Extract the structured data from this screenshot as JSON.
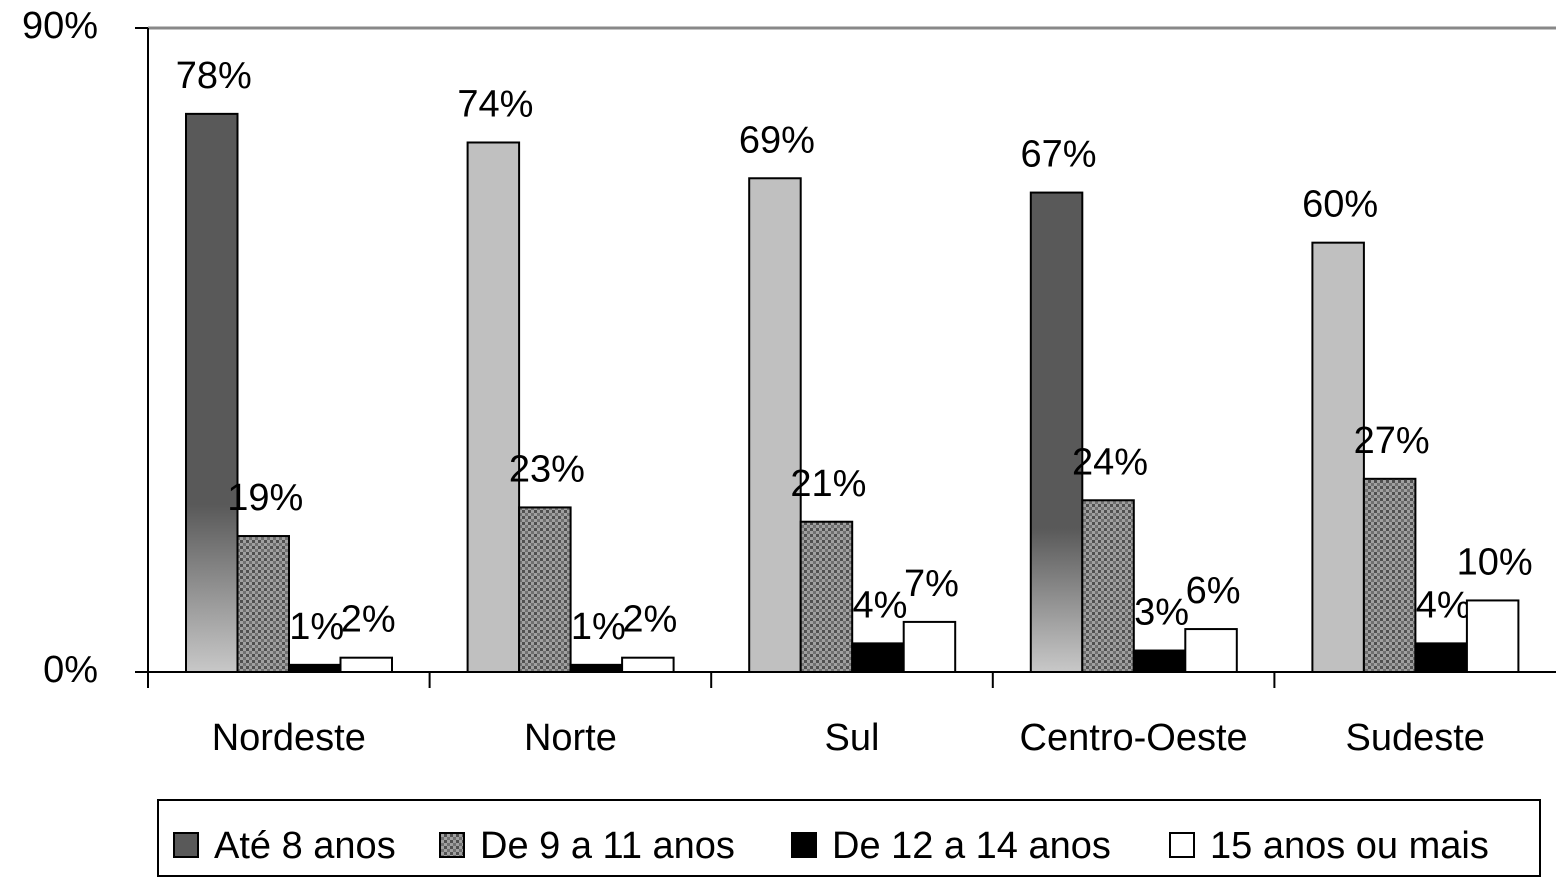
{
  "chart_data": {
    "type": "bar",
    "categories": [
      "Nordeste",
      "Norte",
      "Sul",
      "Centro-Oeste",
      "Sudeste"
    ],
    "series": [
      {
        "name": "Até 8 anos",
        "color": "#595959",
        "colors": [
          "#595959",
          "#c0c0c0",
          "#c0c0c0",
          "#595959",
          "#c0c0c0"
        ],
        "values": [
          78,
          74,
          69,
          67,
          60
        ],
        "value_labels": [
          "78%",
          "74%",
          "69%",
          "67%",
          "60%"
        ]
      },
      {
        "name": "De 9 a 11 anos",
        "color": "#808080",
        "pattern": "dots",
        "values": [
          19,
          23,
          21,
          24,
          27
        ],
        "value_labels": [
          "19%",
          "23%",
          "21%",
          "24%",
          "27%"
        ]
      },
      {
        "name": "De 12 a 14 anos",
        "color": "#000000",
        "values": [
          1,
          1,
          4,
          3,
          4
        ],
        "value_labels": [
          "1%",
          "1%",
          "4%",
          "3%",
          "4%"
        ]
      },
      {
        "name": "15 anos ou mais",
        "color": "#ffffff",
        "values": [
          2,
          2,
          7,
          6,
          10
        ],
        "value_labels": [
          "2%",
          "2%",
          "7%",
          "6%",
          "10%"
        ]
      }
    ],
    "ylim": [
      0,
      90
    ],
    "yticks": [
      {
        "value": 0,
        "label": "0%"
      },
      {
        "value": 90,
        "label": "90%"
      }
    ],
    "legend": "bottom"
  }
}
